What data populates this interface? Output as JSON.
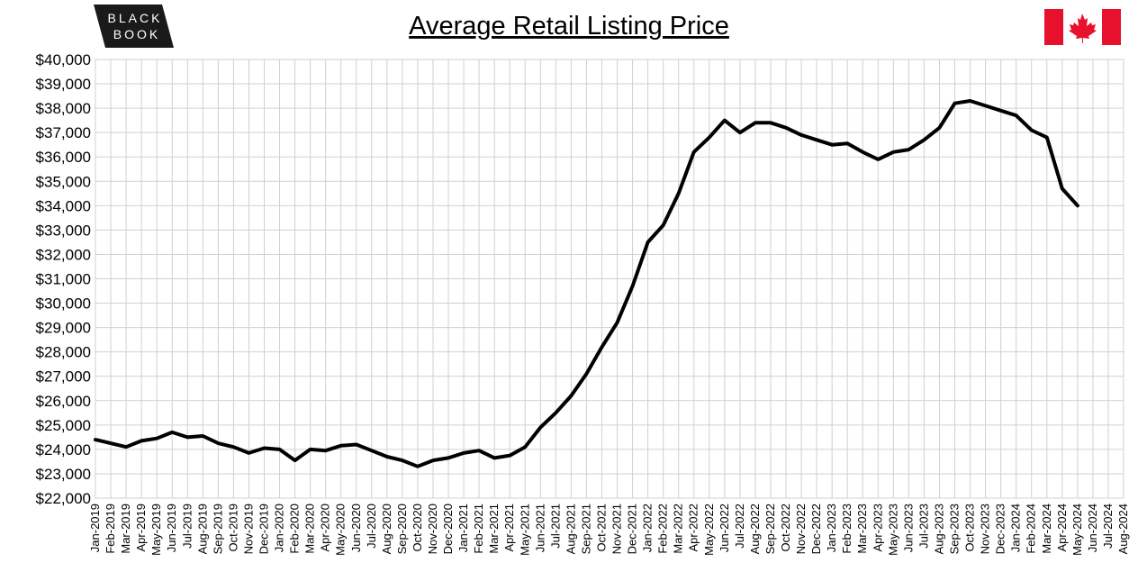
{
  "chart_data": {
    "type": "line",
    "title": "Average Retail Listing Price",
    "logo": [
      "BLACK",
      "BOOK"
    ],
    "grid": true,
    "color": "#000000",
    "categories": [
      "Jan-2019",
      "Feb-2019",
      "Mar-2019",
      "Apr-2019",
      "May-2019",
      "Jun-2019",
      "Jul-2019",
      "Aug-2019",
      "Sep-2019",
      "Oct-2019",
      "Nov-2019",
      "Dec-2019",
      "Jan-2020",
      "Feb-2020",
      "Mar-2020",
      "Apr-2020",
      "May-2020",
      "Jun-2020",
      "Jul-2020",
      "Aug-2020",
      "Sep-2020",
      "Oct-2020",
      "Nov-2020",
      "Dec-2020",
      "Jan-2021",
      "Feb-2021",
      "Mar-2021",
      "Apr-2021",
      "May-2021",
      "Jun-2021",
      "Jul-2021",
      "Aug-2021",
      "Sep-2021",
      "Oct-2021",
      "Nov-2021",
      "Dec-2021",
      "Jan-2022",
      "Feb-2022",
      "Mar-2022",
      "Apr-2022",
      "May-2022",
      "Jun-2022",
      "Jul-2022",
      "Aug-2022",
      "Sep-2022",
      "Oct-2022",
      "Nov-2022",
      "Dec-2022",
      "Jan-2023",
      "Feb-2023",
      "Mar-2023",
      "Apr-2023",
      "May-2023",
      "Jun-2023",
      "Jul-2023",
      "Aug-2023",
      "Sep-2023",
      "Oct-2023",
      "Nov-2023",
      "Dec-2023",
      "Jan-2024",
      "Feb-2024",
      "Mar-2024",
      "Apr-2024",
      "May-2024",
      "Jun-2024",
      "Jul-2024",
      "Aug-2024"
    ],
    "values": [
      24400,
      24250,
      24100,
      24350,
      24450,
      24700,
      24500,
      24550,
      24250,
      24100,
      23850,
      24050,
      24000,
      23550,
      24000,
      23950,
      24150,
      24200,
      23950,
      23700,
      23550,
      23300,
      23550,
      23650,
      23850,
      23950,
      23650,
      23750,
      24100,
      24900,
      25500,
      26200,
      27100,
      28200,
      29200,
      30700,
      32500,
      33200,
      34500,
      36200,
      36800,
      37500,
      37000,
      37400,
      37400,
      37200,
      36900,
      36700,
      36500,
      36550,
      36200,
      35900,
      36200,
      36300,
      36700,
      37200,
      38200,
      38300,
      38100,
      37900,
      37700,
      37100,
      36800,
      34700,
      34000,
      null,
      null,
      null
    ],
    "ylim": [
      22000,
      40000
    ],
    "yticks": [
      {
        "value": 22000,
        "label": "$22,000"
      },
      {
        "value": 23000,
        "label": "$23,000"
      },
      {
        "value": 24000,
        "label": "$24,000"
      },
      {
        "value": 25000,
        "label": "$25,000"
      },
      {
        "value": 26000,
        "label": "$26,000"
      },
      {
        "value": 27000,
        "label": "$27,000"
      },
      {
        "value": 28000,
        "label": "$28,000"
      },
      {
        "value": 29000,
        "label": "$29,000"
      },
      {
        "value": 30000,
        "label": "$30,000"
      },
      {
        "value": 31000,
        "label": "$31,000"
      },
      {
        "value": 32000,
        "label": "$32,000"
      },
      {
        "value": 33000,
        "label": "$33,000"
      },
      {
        "value": 34000,
        "label": "$34,000"
      },
      {
        "value": 35000,
        "label": "$35,000"
      },
      {
        "value": 36000,
        "label": "$36,000"
      },
      {
        "value": 37000,
        "label": "$37,000"
      },
      {
        "value": 38000,
        "label": "$38,000"
      },
      {
        "value": 39000,
        "label": "$39,000"
      },
      {
        "value": 40000,
        "label": "$40,000"
      }
    ]
  }
}
